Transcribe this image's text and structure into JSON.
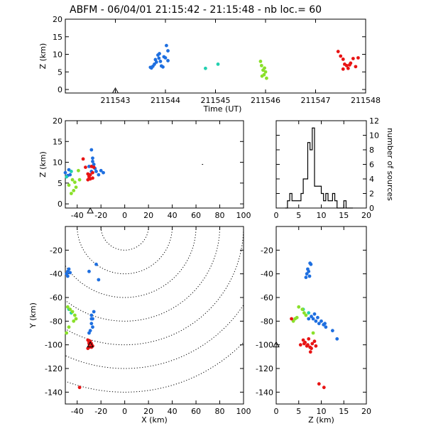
{
  "title": "ABFM - 06/04/01 21:15:42 - 21:15:48 - nb loc.=      60",
  "colors": {
    "early": "#1e6fe0",
    "early2": "#3a9ee8",
    "mid": "#22d0b0",
    "mid2": "#8ae02a",
    "late": "#e81414"
  },
  "chart_data": [
    {
      "id": "time_height",
      "type": "scatter",
      "xlabel": "Time (UT)",
      "ylabel": "Z (km)",
      "xlim": [
        211542.0,
        211548.0
      ],
      "ylim": [
        -1,
        20
      ],
      "xticks": [
        211543,
        211544,
        211545,
        211546,
        211547,
        211548
      ],
      "yticks": [
        0,
        5,
        10,
        15,
        20
      ],
      "station_marker_x": 211543.0,
      "series": [
        {
          "color": "early",
          "points": [
            [
              211543.7,
              6.3
            ],
            [
              211543.75,
              6.6
            ],
            [
              211543.78,
              7.2
            ],
            [
              211543.8,
              8.5
            ],
            [
              211543.82,
              7.8
            ],
            [
              211543.85,
              9.8
            ],
            [
              211543.88,
              10.2
            ],
            [
              211543.9,
              8.0
            ],
            [
              211543.92,
              6.7
            ],
            [
              211543.95,
              6.4
            ],
            [
              211543.97,
              9.3
            ],
            [
              211544.0,
              9.0
            ],
            [
              211544.02,
              12.5
            ],
            [
              211544.05,
              11.0
            ],
            [
              211544.05,
              8.2
            ],
            [
              211543.72,
              6.1
            ],
            [
              211543.87,
              8.9
            ]
          ]
        },
        {
          "color": "mid",
          "points": [
            [
              211544.8,
              6.0
            ],
            [
              211545.05,
              7.2
            ]
          ]
        },
        {
          "color": "mid2",
          "points": [
            [
              211545.9,
              8.0
            ],
            [
              211545.92,
              6.8
            ],
            [
              211545.95,
              5.5
            ],
            [
              211545.97,
              4.2
            ],
            [
              211546.0,
              5.0
            ],
            [
              211545.93,
              3.8
            ],
            [
              211546.02,
              3.2
            ],
            [
              211545.98,
              6.1
            ]
          ]
        },
        {
          "color": "late",
          "points": [
            [
              211547.45,
              10.8
            ],
            [
              211547.5,
              9.5
            ],
            [
              211547.55,
              8.6
            ],
            [
              211547.58,
              7.2
            ],
            [
              211547.62,
              6.8
            ],
            [
              211547.65,
              6.0
            ],
            [
              211547.7,
              7.5
            ],
            [
              211547.75,
              8.8
            ],
            [
              211547.8,
              6.5
            ],
            [
              211547.85,
              9.0
            ],
            [
              211547.55,
              5.8
            ],
            [
              211547.68,
              7.0
            ]
          ]
        }
      ]
    },
    {
      "id": "x_z",
      "type": "scatter",
      "ylabel": "Z (km)",
      "xlim": [
        -50,
        100
      ],
      "ylim": [
        -1,
        20
      ],
      "xticks": [
        -40,
        -20,
        0,
        20,
        40,
        60,
        80,
        100
      ],
      "yticks": [
        0,
        5,
        10,
        15,
        20
      ],
      "station_marker_x": -29,
      "series": [
        {
          "color": "early",
          "points": [
            [
              -28,
              13.0
            ],
            [
              -27,
              11.0
            ],
            [
              -26,
              9.5
            ],
            [
              -25,
              8.5
            ],
            [
              -24,
              7.8
            ],
            [
              -22,
              7.0
            ],
            [
              -20,
              8.0
            ],
            [
              -18,
              7.5
            ],
            [
              -30,
              9.0
            ],
            [
              -28,
              7.8
            ],
            [
              -26,
              8.8
            ],
            [
              -27,
              10.2
            ],
            [
              -50,
              7.5
            ],
            [
              -48,
              6.8
            ],
            [
              -47,
              8.2
            ],
            [
              -46,
              7.0
            ]
          ]
        },
        {
          "color": "mid",
          "points": [
            [
              -49,
              6.5
            ],
            [
              -45,
              7.8
            ]
          ]
        },
        {
          "color": "mid2",
          "points": [
            [
              -47,
              4.5
            ],
            [
              -45,
              2.5
            ],
            [
              -43,
              3.2
            ],
            [
              -42,
              5.2
            ],
            [
              -44,
              5.8
            ],
            [
              -39,
              8.0
            ],
            [
              -38,
              5.8
            ],
            [
              -41,
              4.0
            ]
          ]
        },
        {
          "color": "late",
          "points": [
            [
              -35,
              10.8
            ],
            [
              -33,
              8.8
            ],
            [
              -31,
              7.2
            ],
            [
              -30,
              6.8
            ],
            [
              -29,
              6.0
            ],
            [
              -27,
              7.5
            ],
            [
              -26,
              8.8
            ],
            [
              -30,
              6.5
            ],
            [
              -28,
              9.0
            ],
            [
              -31,
              5.8
            ],
            [
              -29,
              7.0
            ],
            [
              -27,
              6.2
            ]
          ]
        }
      ]
    },
    {
      "id": "z_histogram",
      "type": "bar",
      "ylabel": "number of sources",
      "xlim": [
        0,
        20
      ],
      "ylim": [
        0,
        12
      ],
      "xticks": [
        0,
        5,
        10,
        15,
        20
      ],
      "yticks": [
        0,
        2,
        4,
        6,
        8,
        10,
        12
      ],
      "bin_width": 0.5,
      "bin_edges_start": 2.0,
      "values": [
        0,
        1,
        2,
        1,
        1,
        1,
        1,
        2,
        4,
        4,
        9,
        8,
        11,
        3,
        3,
        3,
        2,
        1,
        2,
        1,
        1,
        2,
        1,
        0,
        0,
        0,
        1,
        0,
        0,
        0
      ]
    },
    {
      "id": "x_y",
      "type": "scatter",
      "xlabel": "X (km)",
      "ylabel": "Y (km)",
      "xlim": [
        -50,
        100
      ],
      "ylim": [
        -150,
        0
      ],
      "xticks": [
        -40,
        -20,
        0,
        20,
        40,
        60,
        80,
        100
      ],
      "yticks": [
        -140,
        -120,
        -100,
        -80,
        -60,
        -40,
        -20
      ],
      "range_rings_km": [
        20,
        40,
        60,
        80,
        100,
        120,
        140
      ],
      "ring_center": [
        0,
        0
      ],
      "station_marker": [
        -29,
        -100
      ],
      "series": [
        {
          "color": "early",
          "points": [
            [
              -49,
              -40
            ],
            [
              -48,
              -38
            ],
            [
              -47,
              -36
            ],
            [
              -46,
              -39
            ],
            [
              -48,
              -42
            ],
            [
              -30,
              -38
            ],
            [
              -24,
              -32
            ],
            [
              -22,
              -45
            ],
            [
              -28,
              -75
            ],
            [
              -27,
              -78
            ],
            [
              -26,
              -72
            ],
            [
              -28,
              -82
            ],
            [
              -27,
              -85
            ],
            [
              -29,
              -88
            ],
            [
              -30,
              -90
            ],
            [
              -28,
              -78
            ]
          ]
        },
        {
          "color": "mid",
          "points": [
            [
              -47,
              -70
            ],
            [
              -45,
              -73
            ]
          ]
        },
        {
          "color": "mid2",
          "points": [
            [
              -48,
              -68
            ],
            [
              -46,
              -70
            ],
            [
              -44,
              -72
            ],
            [
              -42,
              -75
            ],
            [
              -43,
              -80
            ],
            [
              -47,
              -85
            ],
            [
              -49,
              -90
            ],
            [
              -41,
              -78
            ]
          ]
        },
        {
          "color": "late",
          "points": [
            [
              -31,
              -96
            ],
            [
              -30,
              -98
            ],
            [
              -29,
              -100
            ],
            [
              -30,
              -102
            ],
            [
              -28,
              -99
            ],
            [
              -27,
              -101
            ],
            [
              -31,
              -103
            ],
            [
              -29,
              -97
            ],
            [
              -30,
              -99
            ],
            [
              -28,
              -102
            ],
            [
              -38,
              -136
            ],
            [
              -29,
              -98
            ]
          ]
        }
      ]
    },
    {
      "id": "z_y",
      "type": "scatter",
      "xlabel": "Z (km)",
      "xlim": [
        0,
        20
      ],
      "ylim": [
        -150,
        0
      ],
      "xticks": [
        0,
        5,
        10,
        15,
        20
      ],
      "yticks": [
        -140,
        -120,
        -100,
        -80,
        -60,
        -40,
        -20
      ],
      "station_marker": [
        0,
        -100
      ],
      "series": [
        {
          "color": "early",
          "points": [
            [
              6.8,
              -40
            ],
            [
              7.2,
              -38
            ],
            [
              7.0,
              -36
            ],
            [
              7.4,
              -42
            ],
            [
              6.6,
              -43
            ],
            [
              7.5,
              -31
            ],
            [
              7.7,
              -32
            ],
            [
              7.8,
              -76
            ],
            [
              8.2,
              -78
            ],
            [
              8.8,
              -80
            ],
            [
              9.5,
              -82
            ],
            [
              10.0,
              -80
            ],
            [
              10.5,
              -83
            ],
            [
              11.0,
              -85
            ],
            [
              12.5,
              -88
            ],
            [
              13.5,
              -95
            ],
            [
              7.2,
              -78
            ],
            [
              8.5,
              -74
            ],
            [
              9.2,
              -77
            ],
            [
              10.8,
              -82
            ]
          ]
        },
        {
          "color": "mid",
          "points": [
            [
              6.0,
              -70
            ],
            [
              7.2,
              -73
            ]
          ]
        },
        {
          "color": "mid2",
          "points": [
            [
              5.0,
              -68
            ],
            [
              5.8,
              -70
            ],
            [
              6.2,
              -73
            ],
            [
              6.6,
              -75
            ],
            [
              4.6,
              -77
            ],
            [
              3.8,
              -80
            ],
            [
              4.2,
              -78
            ],
            [
              8.2,
              -90
            ]
          ]
        },
        {
          "color": "late",
          "points": [
            [
              6.0,
              -96
            ],
            [
              6.4,
              -98
            ],
            [
              7.0,
              -100
            ],
            [
              7.5,
              -102
            ],
            [
              8.0,
              -99
            ],
            [
              6.8,
              -101
            ],
            [
              7.8,
              -103
            ],
            [
              8.5,
              -97
            ],
            [
              6.2,
              -99
            ],
            [
              7.2,
              -95
            ],
            [
              8.8,
              -101
            ],
            [
              7.6,
              -106
            ],
            [
              3.4,
              -78
            ],
            [
              5.4,
              -100
            ],
            [
              10.6,
              -136
            ],
            [
              9.5,
              -133
            ]
          ]
        }
      ]
    }
  ]
}
